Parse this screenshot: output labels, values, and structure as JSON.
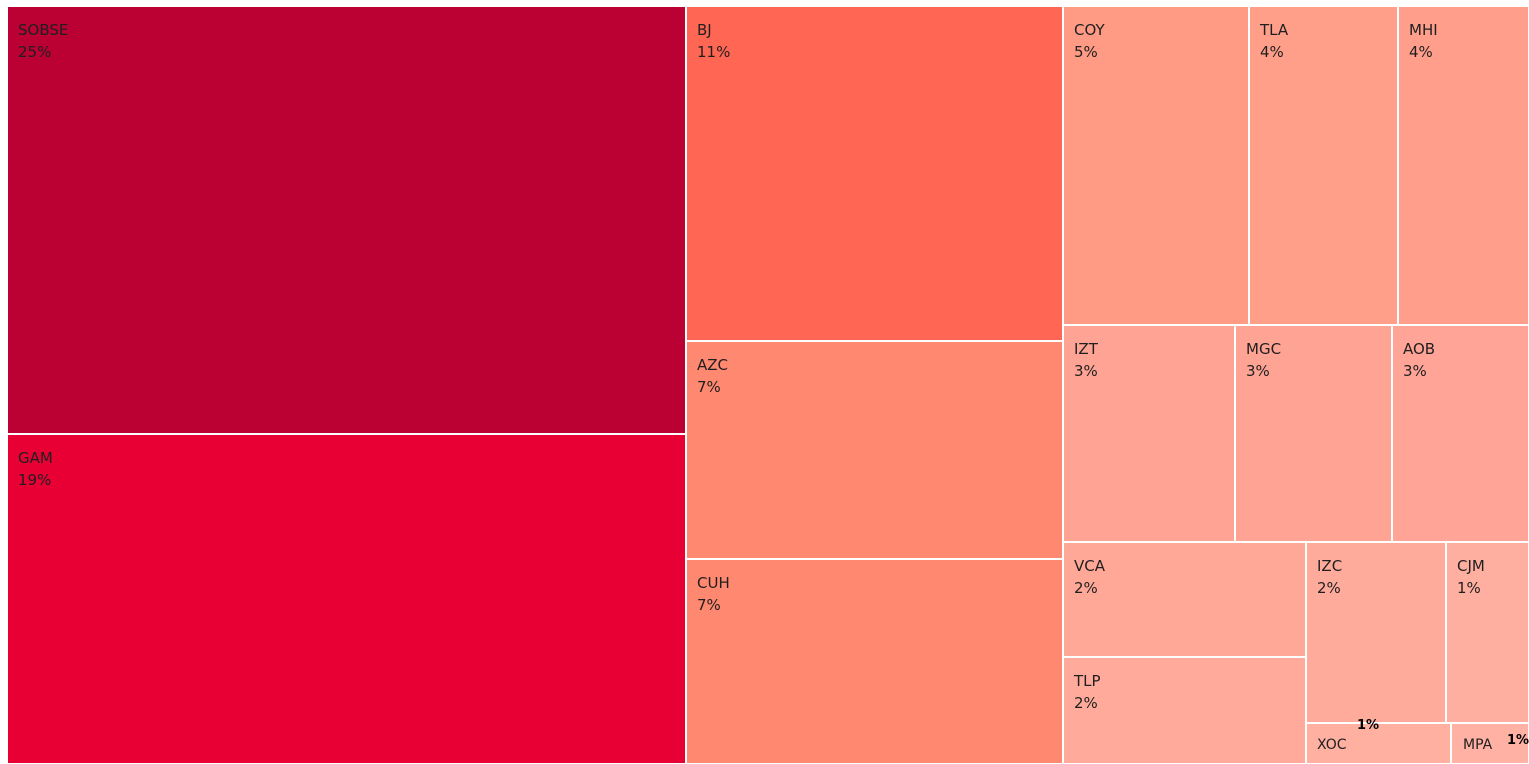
{
  "chart_data": {
    "type": "treemap",
    "title": "",
    "items": [
      {
        "id": "sobse",
        "name": "SOBSE",
        "value": 25,
        "label": "25%",
        "color": "#bb0033"
      },
      {
        "id": "gam",
        "name": "GAM",
        "value": 19,
        "label": "19%",
        "color": "#e80034"
      },
      {
        "id": "bj",
        "name": "BJ",
        "value": 11,
        "label": "11%",
        "color": "#ff6754"
      },
      {
        "id": "azc",
        "name": "AZC",
        "value": 7,
        "label": "7%",
        "color": "#ff8870"
      },
      {
        "id": "cuh",
        "name": "CUH",
        "value": 7,
        "label": "7%",
        "color": "#ff8870"
      },
      {
        "id": "coy",
        "name": "COY",
        "value": 5,
        "label": "5%",
        "color": "#ff9b85"
      },
      {
        "id": "tla",
        "name": "TLA",
        "value": 4,
        "label": "4%",
        "color": "#ff9e89"
      },
      {
        "id": "mhi",
        "name": "MHI",
        "value": 4,
        "label": "4%",
        "color": "#ff9f8b"
      },
      {
        "id": "izt",
        "name": "IZT",
        "value": 3,
        "label": "3%",
        "color": "#ffa394"
      },
      {
        "id": "mgc",
        "name": "MGC",
        "value": 3,
        "label": "3%",
        "color": "#ffa394"
      },
      {
        "id": "aob",
        "name": "AOB",
        "value": 3,
        "label": "3%",
        "color": "#ffa496"
      },
      {
        "id": "vca",
        "name": "VCA",
        "value": 2,
        "label": "2%",
        "color": "#ffa898"
      },
      {
        "id": "tlp",
        "name": "TLP",
        "value": 2,
        "label": "2%",
        "color": "#ffaa9b"
      },
      {
        "id": "izc",
        "name": "IZC",
        "value": 2,
        "label": "2%",
        "color": "#ffab9c"
      },
      {
        "id": "cjm",
        "name": "CJM",
        "value": 1,
        "label": "1%",
        "color": "#ffaf9f"
      },
      {
        "id": "xoc",
        "name": "XOC",
        "value": 1,
        "label": "1%",
        "color": "#ffb0a1"
      },
      {
        "id": "mpa",
        "name": "MPA",
        "value": 1,
        "label": "1%",
        "color": "#ffb2a4"
      }
    ]
  }
}
